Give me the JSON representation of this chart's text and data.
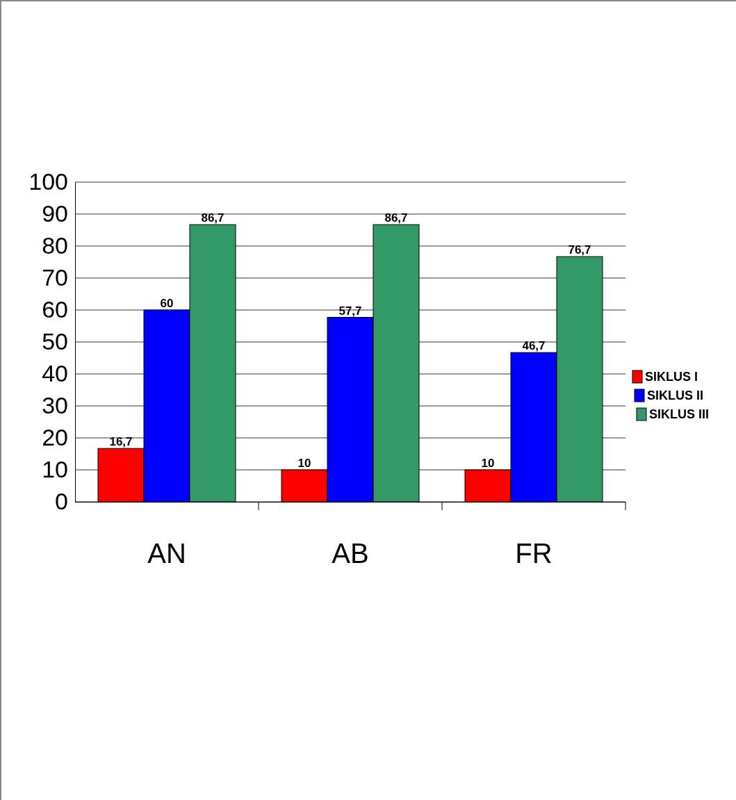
{
  "chart_data": {
    "type": "bar",
    "categories": [
      "AN",
      "AB",
      "FR"
    ],
    "series": [
      {
        "name": "SIKLUS I",
        "color": "#ff0000",
        "values": [
          16.7,
          10,
          10
        ],
        "value_labels": [
          "16,7",
          "10",
          "10"
        ]
      },
      {
        "name": "SIKLUS II",
        "color": "#0000ff",
        "values": [
          60,
          57.7,
          46.7
        ],
        "value_labels": [
          "60",
          "57,7",
          "46,7"
        ]
      },
      {
        "name": "SIKLUS III",
        "color": "#339966",
        "values": [
          86.7,
          86.7,
          76.7
        ],
        "value_labels": [
          "86,7",
          "86,7",
          "76,7"
        ]
      }
    ],
    "ylim": [
      0,
      100
    ],
    "yticks": [
      0,
      10,
      20,
      30,
      40,
      50,
      60,
      70,
      80,
      90,
      100
    ],
    "grid": "y",
    "legend": "right"
  }
}
